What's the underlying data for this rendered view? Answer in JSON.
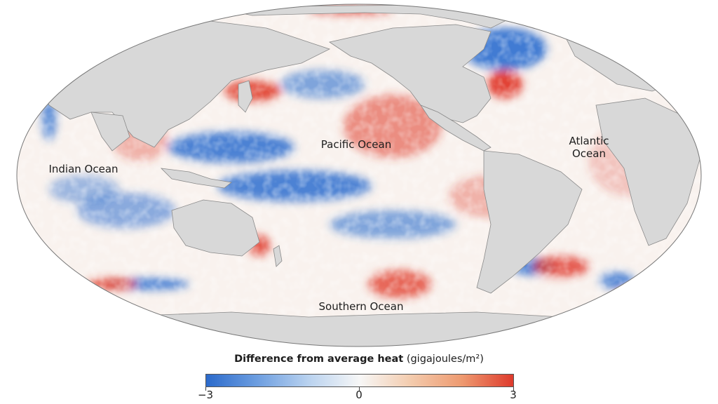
{
  "map": {
    "projection": "Hammer (global equal-area)",
    "labels": {
      "pacific": "Pacific Ocean",
      "indian": "Indian Ocean",
      "atlantic": "Atlantic\nOcean",
      "southern": "Southern Ocean"
    },
    "colors": {
      "land": "#d8d8d8",
      "land_outline": "#8a8a8a",
      "negative": "#2f6fcf",
      "neutral": "#fbfbfb",
      "positive": "#e03a2a"
    }
  },
  "legend": {
    "title_bold": "Difference from average heat",
    "title_unit": "(gigajoules/m²)",
    "min": "−3",
    "mid": "0",
    "max": "3",
    "scale": [
      -3,
      0,
      3
    ],
    "gradient": [
      "#2b6acb",
      "#6d9ee0",
      "#b9d2ef",
      "#f7f7f7",
      "#f3cbad",
      "#ee9a70",
      "#de3a2c"
    ]
  }
}
